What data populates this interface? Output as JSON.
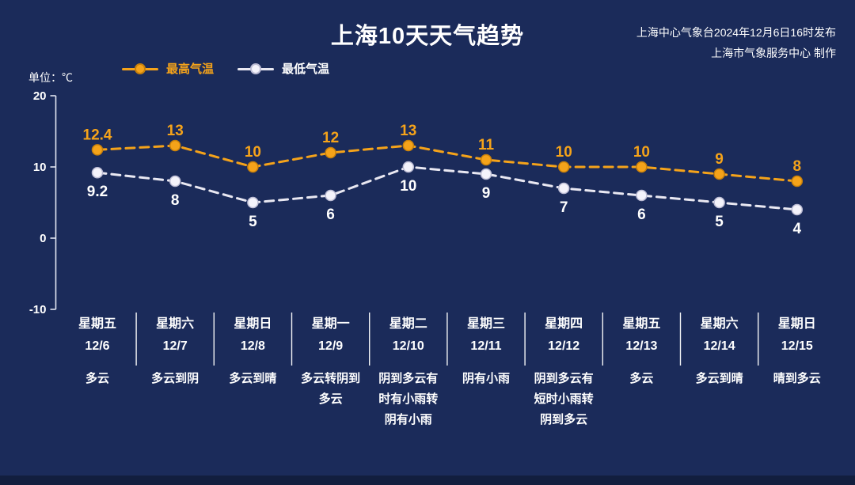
{
  "header": {
    "source_line1": "上海中心气象台2024年12月6日16时发布",
    "source_line2": "上海市气象服务中心 制作",
    "unit_label": "单位：℃"
  },
  "colors": {
    "background": "#1b2b5a",
    "max_line": "#f5a31a",
    "min_line": "#e9e8f2",
    "axis": "#e0e4f0",
    "text": "#ffffff"
  },
  "chart_data": {
    "type": "line",
    "title": "上海10天天气趋势",
    "unit": "℃",
    "ylim": [
      -10,
      20
    ],
    "yticks": [
      20,
      10,
      0,
      -10
    ],
    "grid": false,
    "legend_position": "top-left",
    "line_style": "dashed",
    "categories": [
      {
        "day": "星期五",
        "date": "12/6",
        "weather": "多云"
      },
      {
        "day": "星期六",
        "date": "12/7",
        "weather": "多云到阴"
      },
      {
        "day": "星期日",
        "date": "12/8",
        "weather": "多云到晴"
      },
      {
        "day": "星期一",
        "date": "12/9",
        "weather": "多云转阴到多云"
      },
      {
        "day": "星期二",
        "date": "12/10",
        "weather": "阴到多云有时有小雨转阴有小雨"
      },
      {
        "day": "星期三",
        "date": "12/11",
        "weather": "阴有小雨"
      },
      {
        "day": "星期四",
        "date": "12/12",
        "weather": "阴到多云有短时小雨转阴到多云"
      },
      {
        "day": "星期五",
        "date": "12/13",
        "weather": "多云"
      },
      {
        "day": "星期六",
        "date": "12/14",
        "weather": "多云到晴"
      },
      {
        "day": "星期日",
        "date": "12/15",
        "weather": "晴到多云"
      }
    ],
    "series": [
      {
        "name": "最高气温",
        "values": [
          12.4,
          13,
          10,
          12,
          13,
          11,
          10,
          10,
          9,
          8
        ]
      },
      {
        "name": "最低气温",
        "values": [
          9.2,
          8,
          5,
          6,
          10,
          9,
          7,
          6,
          5,
          4
        ]
      }
    ]
  }
}
